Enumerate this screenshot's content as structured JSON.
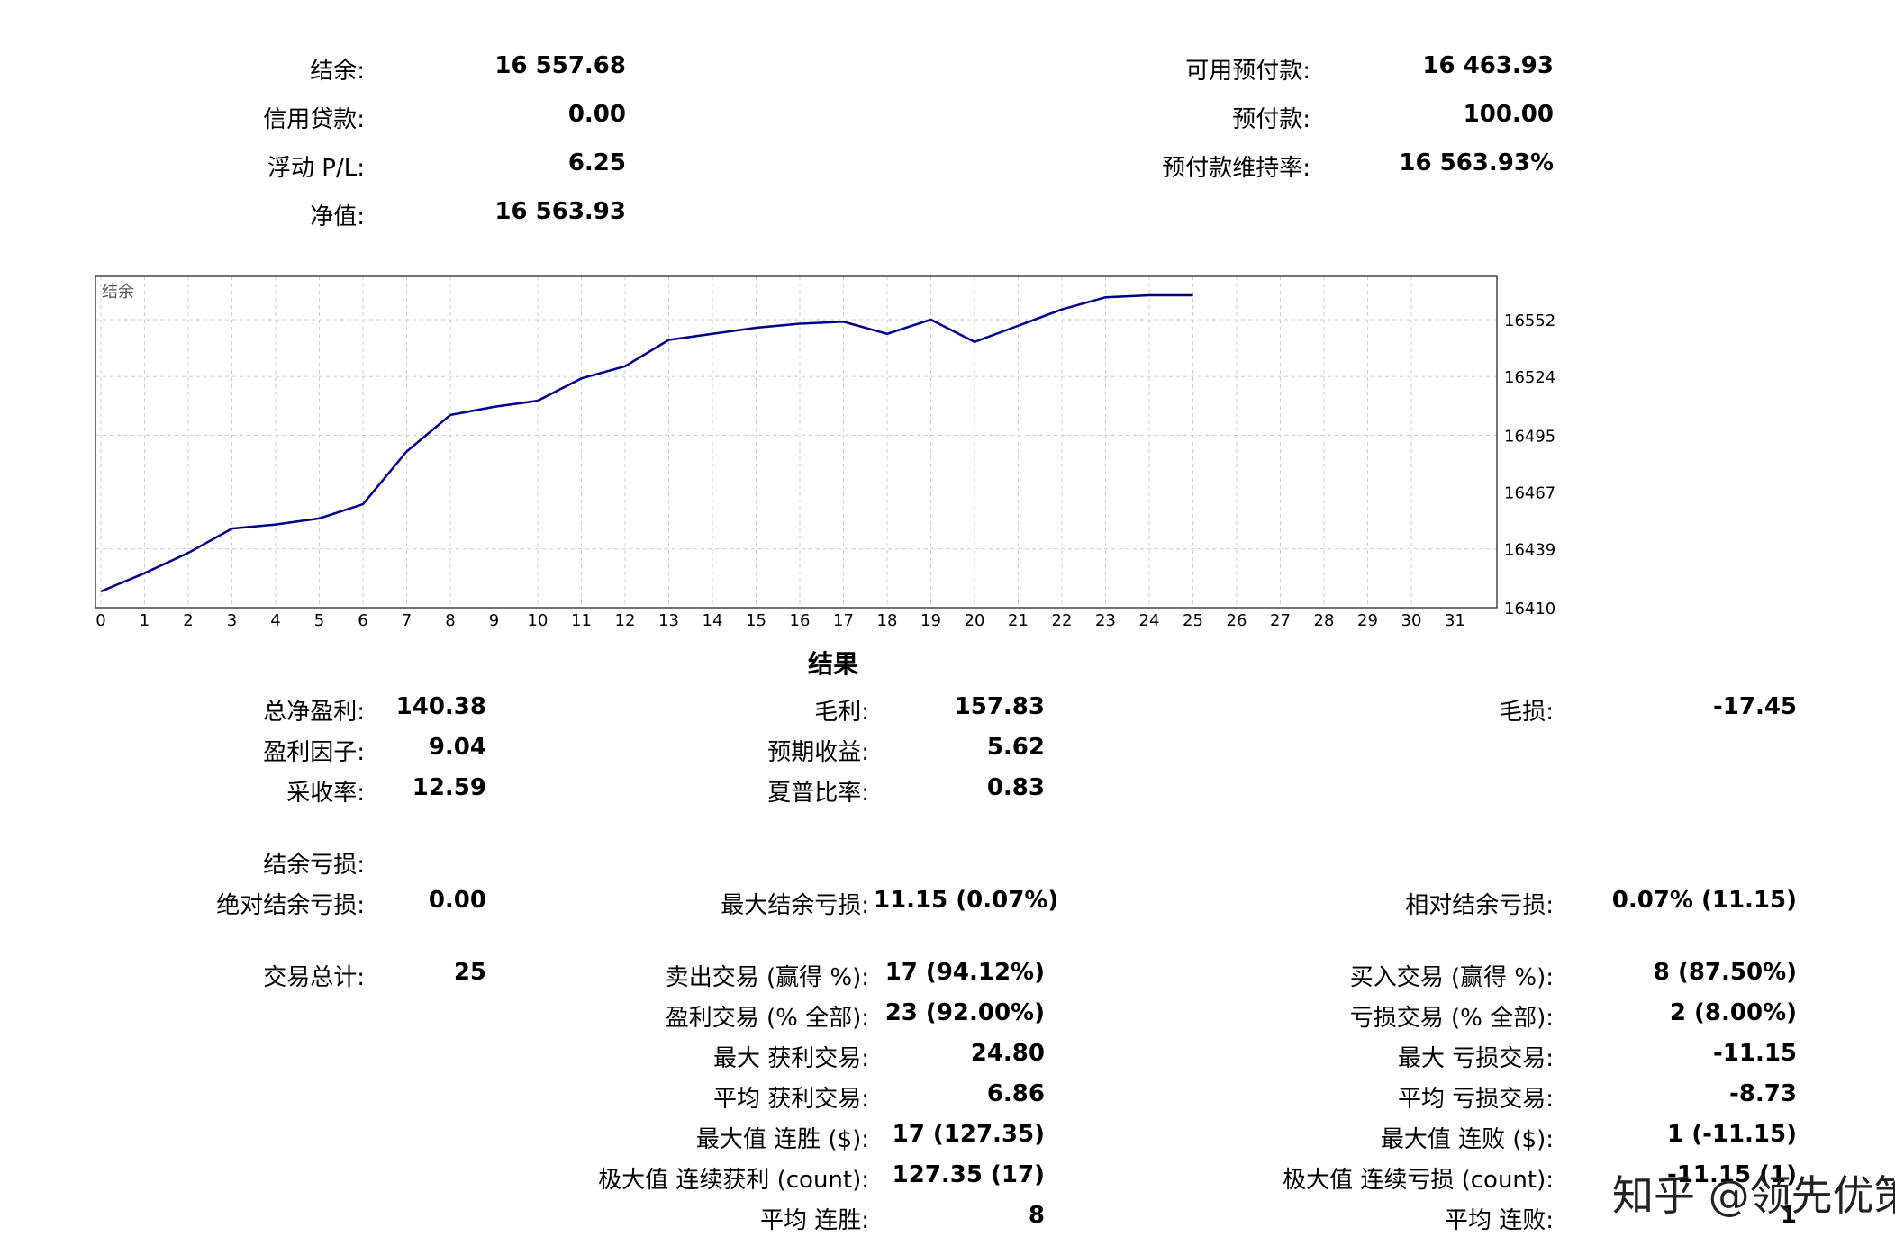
{
  "summary": {
    "balance_label": "结余:",
    "balance_value": "16 557.68",
    "credit_label": "信用贷款:",
    "credit_value": "0.00",
    "floating_label": "浮动 P/L:",
    "floating_value": "6.25",
    "equity_label": "净值:",
    "equity_value": "16 563.93",
    "free_margin_label": "可用预付款:",
    "free_margin_value": "16 463.93",
    "margin_label": "预付款:",
    "margin_value": "100.00",
    "margin_level_label": "预付款维持率:",
    "margin_level_value": "16 563.93%"
  },
  "chart_data": {
    "type": "line",
    "title": "结余",
    "x": [
      0,
      1,
      2,
      3,
      4,
      5,
      6,
      7,
      8,
      9,
      10,
      11,
      12,
      13,
      14,
      15,
      16,
      17,
      18,
      19,
      20,
      21,
      22,
      23,
      24,
      25
    ],
    "series": [
      {
        "values": [
          16418,
          16427,
          16437,
          16449,
          16451,
          16454,
          16461,
          16487,
          16505,
          16509,
          16512,
          16523,
          16529,
          16542,
          16545,
          16548,
          16550,
          16551,
          16545,
          16552,
          16541,
          16549,
          16557,
          16563,
          16564,
          16564
        ]
      }
    ],
    "xticks": [
      "0",
      "1",
      "2",
      "3",
      "4",
      "5",
      "6",
      "7",
      "8",
      "9",
      "10",
      "11",
      "12",
      "13",
      "14",
      "15",
      "16",
      "17",
      "18",
      "19",
      "20",
      "21",
      "22",
      "23",
      "24",
      "25",
      "26",
      "27",
      "28",
      "29",
      "30",
      "31"
    ],
    "yticks": [
      "16552",
      "16524",
      "16495",
      "16467",
      "16439",
      "16410"
    ],
    "xlim": [
      0,
      31
    ],
    "ylim": [
      16410,
      16572
    ],
    "grid": true,
    "line_color": "#00008b",
    "grid_color": "#cccccc"
  },
  "results": {
    "title": "结果",
    "total_net_profit_label": "总净盈利:",
    "total_net_profit_value": "140.38",
    "gross_profit_label": "毛利:",
    "gross_profit_value": "157.83",
    "gross_loss_label": "毛损:",
    "gross_loss_value": "-17.45",
    "profit_factor_label": "盈利因子:",
    "profit_factor_value": "9.04",
    "expected_payoff_label": "预期收益:",
    "expected_payoff_value": "5.62",
    "recovery_factor_label": "采收率:",
    "recovery_factor_value": "12.59",
    "sharpe_label": "夏普比率:",
    "sharpe_value": "0.83",
    "balance_drawdown_label": "结余亏损:",
    "abs_dd_label": "绝对结余亏损:",
    "abs_dd_value": "0.00",
    "max_dd_label": "最大结余亏损:",
    "max_dd_value": "11.15 (0.07%)",
    "rel_dd_label": "相对结余亏损:",
    "rel_dd_value": "0.07% (11.15)",
    "total_trades_label": "交易总计:",
    "total_trades_value": "25",
    "short_label": "卖出交易 (赢得 %):",
    "short_value": "17 (94.12%)",
    "long_label": "买入交易 (赢得 %):",
    "long_value": "8 (87.50%)",
    "profit_trades_label": "盈利交易 (% 全部):",
    "profit_trades_value": "23 (92.00%)",
    "loss_trades_label": "亏损交易 (% 全部):",
    "loss_trades_value": "2 (8.00%)",
    "largest_profit_label": "最大 获利交易:",
    "largest_profit_value": "24.80",
    "largest_loss_label": "最大 亏损交易:",
    "largest_loss_value": "-11.15",
    "avg_profit_label": "平均 获利交易:",
    "avg_profit_value": "6.86",
    "avg_loss_label": "平均 亏损交易:",
    "avg_loss_value": "-8.73",
    "max_consec_wins_label": "最大值 连胜 ($):",
    "max_consec_wins_value": "17 (127.35)",
    "max_consec_losses_label": "最大值 连败 ($):",
    "max_consec_losses_value": "1 (-11.15)",
    "maximal_consec_profit_label": "极大值 连续获利 (count):",
    "maximal_consec_profit_value": "127.35 (17)",
    "maximal_consec_loss_label": "极大值 连续亏损 (count):",
    "maximal_consec_loss_value": "-11.15 (1)",
    "avg_consec_wins_label": "平均 连胜:",
    "avg_consec_wins_value": "8",
    "avg_consec_losses_label": "平均 连败:",
    "avg_consec_losses_value": "1"
  },
  "watermark": "知乎 @领先优策"
}
